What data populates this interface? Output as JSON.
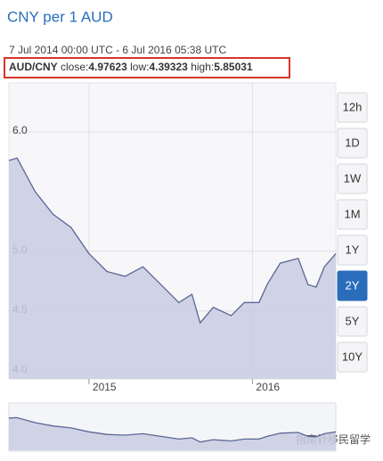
{
  "header": {
    "title": "CNY per 1 AUD",
    "range_text": "7 Jul 2014 00:00 UTC - 6 Jul 2016 05:38 UTC",
    "pair": "AUD/CNY",
    "stats": [
      {
        "label": "close:",
        "value": 4.97623
      },
      {
        "label": "low:",
        "value": 4.39323
      },
      {
        "label": "high:",
        "value": 5.85031
      }
    ]
  },
  "range_buttons": [
    "12h",
    "1D",
    "1W",
    "1M",
    "1Y",
    "2Y",
    "5Y",
    "10Y"
  ],
  "selected_range": 5,
  "watermark": "指南针移民留学",
  "chart_data": {
    "type": "area",
    "color": "#5b6795",
    "fill": "#c9cde2",
    "x": [
      2014.51,
      2014.56,
      2014.67,
      2014.78,
      2014.89,
      2015.0,
      2015.11,
      2015.22,
      2015.33,
      2015.44,
      2015.55,
      2015.63,
      2015.68,
      2015.76,
      2015.87,
      2015.95,
      2016.04,
      2016.09,
      2016.17,
      2016.28,
      2016.34,
      2016.39,
      2016.44,
      2016.51
    ],
    "values": [
      5.76,
      5.78,
      5.5,
      5.31,
      5.2,
      4.98,
      4.83,
      4.79,
      4.87,
      4.72,
      4.57,
      4.64,
      4.4,
      4.53,
      4.46,
      4.57,
      4.57,
      4.72,
      4.9,
      4.94,
      4.72,
      4.7,
      4.87,
      4.98
    ],
    "xlim": [
      2014.51,
      2016.51
    ],
    "xticks": [
      2015,
      2016
    ],
    "ylim": [
      3.93,
      6.41
    ],
    "yticks": [
      {
        "value": 6.0,
        "label": "6.0"
      },
      {
        "value": 5.0,
        "label": "5.0"
      },
      {
        "value": 4.5,
        "label": "4.5"
      },
      {
        "value": 4.0,
        "label": "4.0"
      }
    ],
    "grid": true
  }
}
